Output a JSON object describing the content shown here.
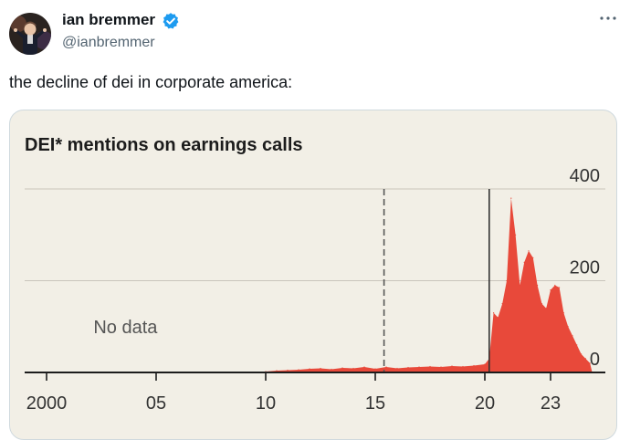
{
  "tweet": {
    "author_name": "ian bremmer",
    "handle": "@ianbremmer",
    "text": "the decline of dei in corporate america:",
    "more_icon": "more-horizontal-icon",
    "verified_icon": "verified-badge-icon",
    "colors": {
      "verified": "#1d9bf0",
      "text": "#0f1419",
      "secondary": "#536471"
    }
  },
  "chart_data": {
    "type": "area",
    "title": "DEI* mentions on earnings calls",
    "xlabel": "",
    "ylabel": "",
    "xlim": [
      1999,
      2025.5
    ],
    "ylim": [
      0,
      400
    ],
    "x_ticks": [
      2000,
      2005,
      2010,
      2015,
      2020,
      2023
    ],
    "x_tick_labels": [
      "2000",
      "05",
      "10",
      "15",
      "20",
      "23"
    ],
    "y_ticks": [
      0,
      200,
      400
    ],
    "y_tick_labels": [
      "0",
      "200",
      "400"
    ],
    "grid": "horizontal",
    "annotations": [
      {
        "text": "No data",
        "x": 2003.6,
        "y": 100
      }
    ],
    "reference_lines": [
      {
        "x": 2015.4,
        "style": "dashed"
      },
      {
        "x": 2020.2,
        "style": "solid"
      }
    ],
    "colors": {
      "fill": "#e8493a",
      "background": "#f2efe6",
      "grid": "#c9c5bb"
    },
    "series": [
      {
        "x": [
          2009.6,
          2010.0,
          2010.5,
          2011.0,
          2011.5,
          2012.0,
          2012.5,
          2013.0,
          2013.5,
          2014.0,
          2014.5,
          2015.0,
          2015.5,
          2016.0,
          2016.5,
          2017.0,
          2017.5,
          2018.0,
          2018.5,
          2019.0,
          2019.5,
          2020.0,
          2020.2,
          2020.4,
          2020.6,
          2020.8,
          2021.0,
          2021.2,
          2021.4,
          2021.6,
          2021.8,
          2022.0,
          2022.2,
          2022.4,
          2022.6,
          2022.8,
          2023.0,
          2023.2,
          2023.4,
          2023.6,
          2023.8,
          2024.0,
          2024.2,
          2024.4,
          2024.6,
          2024.8,
          2024.9
        ],
        "values": [
          0,
          2,
          4,
          5,
          6,
          8,
          9,
          7,
          10,
          9,
          12,
          8,
          12,
          9,
          11,
          12,
          13,
          12,
          14,
          13,
          15,
          18,
          30,
          130,
          120,
          150,
          200,
          380,
          300,
          190,
          240,
          265,
          250,
          190,
          150,
          140,
          180,
          190,
          185,
          130,
          100,
          80,
          60,
          40,
          30,
          20,
          0
        ]
      }
    ]
  }
}
